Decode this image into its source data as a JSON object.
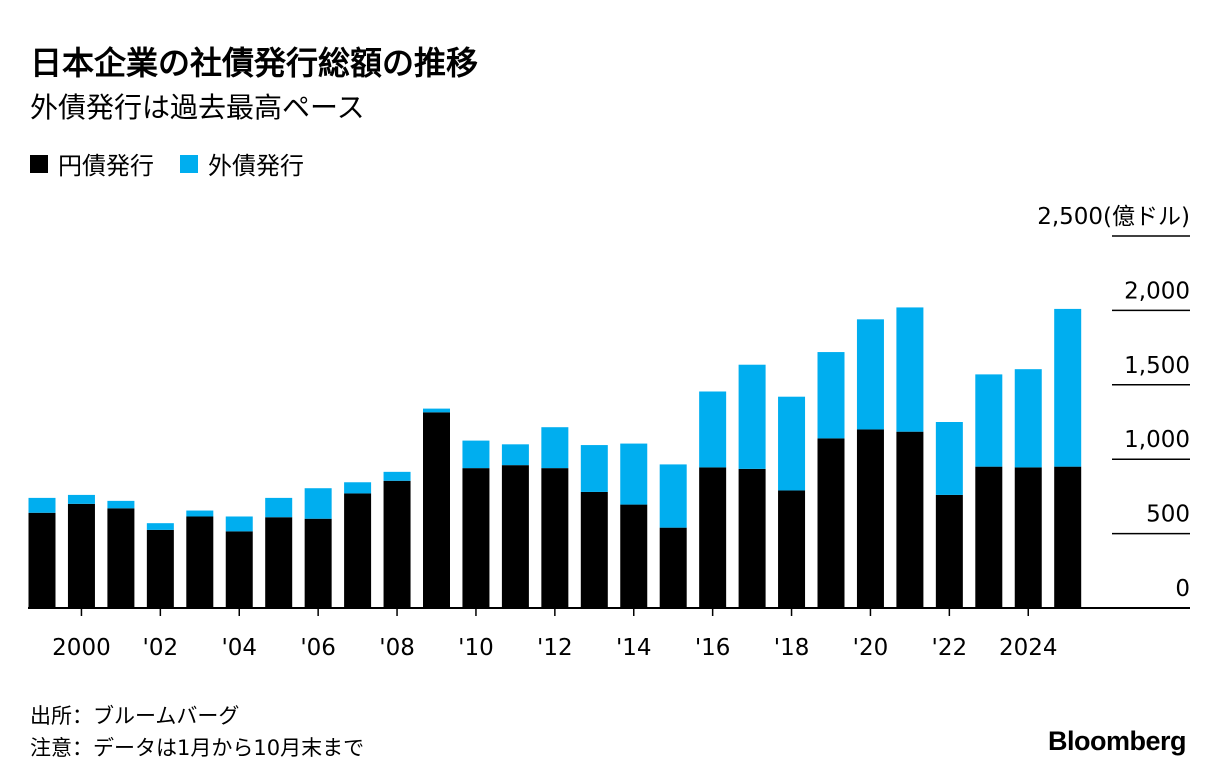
{
  "title": "日本企業の社債発行総額の推移",
  "subtitle": "外債発行は過去最高ペース",
  "legend": {
    "yen": {
      "label": "円債発行",
      "color": "#000000"
    },
    "foreign": {
      "label": "外債発行",
      "color": "#00aeef"
    }
  },
  "footer": {
    "source": "出所：ブルームバーグ",
    "note": "注意：データは1月から10月末まで"
  },
  "logo": "Bloomberg",
  "chart_data": {
    "type": "bar",
    "stacked": true,
    "title": "日本企業の社債発行総額の推移",
    "subtitle": "外債発行は過去最高ペース",
    "unit": "(億ドル)",
    "ylim": [
      0,
      2500
    ],
    "yticks": [
      0,
      500,
      1000,
      1500,
      2000,
      2500
    ],
    "ytick_labels": [
      "0",
      "500",
      "1,000",
      "1,500",
      "2,000",
      "2,500"
    ],
    "y_axis_position": "right",
    "categories": [
      1999,
      2000,
      2001,
      2002,
      2003,
      2004,
      2005,
      2006,
      2007,
      2008,
      2009,
      2010,
      2011,
      2012,
      2013,
      2014,
      2015,
      2016,
      2017,
      2018,
      2019,
      2020,
      2021,
      2022,
      2023,
      2024,
      2025
    ],
    "xtick_labels": [
      {
        "year": 2000,
        "label": "2000"
      },
      {
        "year": 2002,
        "label": "'02"
      },
      {
        "year": 2004,
        "label": "'04"
      },
      {
        "year": 2006,
        "label": "'06"
      },
      {
        "year": 2008,
        "label": "'08"
      },
      {
        "year": 2010,
        "label": "'10"
      },
      {
        "year": 2012,
        "label": "'12"
      },
      {
        "year": 2014,
        "label": "'14"
      },
      {
        "year": 2016,
        "label": "'16"
      },
      {
        "year": 2018,
        "label": "'18"
      },
      {
        "year": 2020,
        "label": "'20"
      },
      {
        "year": 2022,
        "label": "'22"
      },
      {
        "year": 2024,
        "label": "2024"
      }
    ],
    "series": [
      {
        "name": "円債発行",
        "color": "#000000",
        "values": [
          640,
          700,
          670,
          525,
          615,
          515,
          610,
          600,
          770,
          855,
          1315,
          940,
          960,
          940,
          780,
          695,
          540,
          945,
          935,
          790,
          1140,
          1200,
          1185,
          760,
          950,
          945,
          950
        ]
      },
      {
        "name": "外債発行",
        "color": "#00aeef",
        "values": [
          100,
          60,
          50,
          45,
          40,
          100,
          130,
          205,
          75,
          60,
          25,
          185,
          140,
          275,
          315,
          410,
          425,
          510,
          700,
          630,
          580,
          740,
          835,
          490,
          620,
          660,
          1060
        ]
      }
    ]
  }
}
